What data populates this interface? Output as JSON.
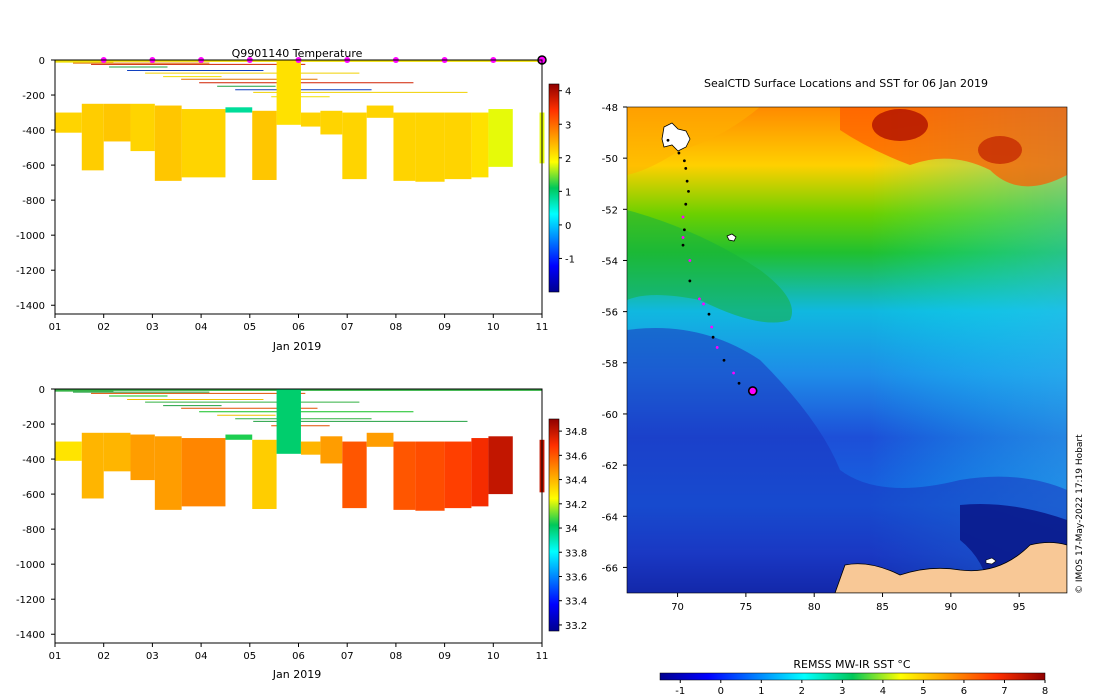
{
  "credit": "© IMOS 17-May-2022 17:19 Hobart",
  "chart_data": [
    {
      "id": "temperature",
      "type": "heatmap",
      "title": "Q9901140  Temperature",
      "xlabel": "Jan 2019",
      "ylabel": "",
      "xlim": [
        1,
        11
      ],
      "ylim": [
        -1450,
        0
      ],
      "x_ticks": [
        "01",
        "02",
        "03",
        "04",
        "05",
        "06",
        "07",
        "08",
        "09",
        "10",
        "11"
      ],
      "y_ticks": [
        0,
        -200,
        -400,
        -600,
        -800,
        -1000,
        -1200,
        -1400
      ],
      "colorbar": {
        "min": -2,
        "max": 4.2,
        "ticks": [
          4,
          3,
          2,
          1,
          0,
          -1
        ],
        "colormap": "jet"
      },
      "surface_markers_days": [
        2,
        3,
        4,
        5,
        6,
        7,
        8,
        9,
        10
      ],
      "current_position_day": 11,
      "profiles": [
        {
          "x0": 1.0,
          "x1": 1.55,
          "top": 300,
          "bottom": 415,
          "value": 2.2
        },
        {
          "x0": 1.55,
          "x1": 2.0,
          "top": 250,
          "bottom": 630,
          "value": 2.25
        },
        {
          "x0": 2.0,
          "x1": 2.55,
          "top": 250,
          "bottom": 465,
          "value": 2.3
        },
        {
          "x0": 2.55,
          "x1": 3.05,
          "top": 250,
          "bottom": 520,
          "value": 2.2
        },
        {
          "x0": 3.05,
          "x1": 3.6,
          "top": 260,
          "bottom": 690,
          "value": 2.3
        },
        {
          "x0": 3.6,
          "x1": 4.5,
          "top": 280,
          "bottom": 670,
          "value": 2.2
        },
        {
          "x0": 4.5,
          "x1": 5.05,
          "top": 270,
          "bottom": 300,
          "value": 0.8
        },
        {
          "x0": 5.05,
          "x1": 5.55,
          "top": 290,
          "bottom": 685,
          "value": 2.3
        },
        {
          "x0": 5.55,
          "x1": 6.05,
          "top": 0,
          "bottom": 370,
          "value": 2.1
        },
        {
          "x0": 6.05,
          "x1": 6.45,
          "top": 300,
          "bottom": 380,
          "value": 2.2
        },
        {
          "x0": 6.45,
          "x1": 6.9,
          "top": 290,
          "bottom": 425,
          "value": 2.2
        },
        {
          "x0": 6.9,
          "x1": 7.4,
          "top": 300,
          "bottom": 680,
          "value": 2.2
        },
        {
          "x0": 7.4,
          "x1": 7.95,
          "top": 260,
          "bottom": 330,
          "value": 2.2
        },
        {
          "x0": 7.95,
          "x1": 8.4,
          "top": 300,
          "bottom": 690,
          "value": 2.2
        },
        {
          "x0": 8.4,
          "x1": 9.0,
          "top": 300,
          "bottom": 695,
          "value": 2.2
        },
        {
          "x0": 9.0,
          "x1": 9.55,
          "top": 300,
          "bottom": 680,
          "value": 2.2
        },
        {
          "x0": 9.55,
          "x1": 9.9,
          "top": 300,
          "bottom": 670,
          "value": 2.1
        },
        {
          "x0": 9.9,
          "x1": 10.4,
          "top": 280,
          "bottom": 610,
          "value": 1.8
        },
        {
          "x0": 10.95,
          "x1": 11.05,
          "top": 300,
          "bottom": 590,
          "value": 1.8
        }
      ]
    },
    {
      "id": "salinity",
      "type": "heatmap",
      "title": "",
      "xlabel": "Jan 2019",
      "ylabel": "",
      "xlim": [
        1,
        11
      ],
      "ylim": [
        -1450,
        0
      ],
      "x_ticks": [
        "01",
        "02",
        "03",
        "04",
        "05",
        "06",
        "07",
        "08",
        "09",
        "10",
        "11"
      ],
      "y_ticks": [
        0,
        -200,
        -400,
        -600,
        -800,
        -1000,
        -1200,
        -1400
      ],
      "colorbar": {
        "min": 33.15,
        "max": 34.9,
        "ticks": [
          34.8,
          34.6,
          34.4,
          34.2,
          34,
          33.8,
          33.6,
          33.4,
          33.2
        ],
        "colormap": "jet"
      },
      "profiles": [
        {
          "x0": 1.0,
          "x1": 1.55,
          "top": 300,
          "bottom": 410,
          "value": 34.3
        },
        {
          "x0": 1.55,
          "x1": 2.0,
          "top": 250,
          "bottom": 625,
          "value": 34.4
        },
        {
          "x0": 2.0,
          "x1": 2.55,
          "top": 250,
          "bottom": 470,
          "value": 34.4
        },
        {
          "x0": 2.55,
          "x1": 3.05,
          "top": 260,
          "bottom": 520,
          "value": 34.45
        },
        {
          "x0": 3.05,
          "x1": 3.6,
          "top": 270,
          "bottom": 690,
          "value": 34.45
        },
        {
          "x0": 3.6,
          "x1": 4.5,
          "top": 280,
          "bottom": 670,
          "value": 34.5
        },
        {
          "x0": 4.5,
          "x1": 5.05,
          "top": 260,
          "bottom": 290,
          "value": 34.05
        },
        {
          "x0": 5.05,
          "x1": 5.55,
          "top": 290,
          "bottom": 685,
          "value": 34.35
        },
        {
          "x0": 5.55,
          "x1": 6.05,
          "top": 0,
          "bottom": 370,
          "value": 34.0
        },
        {
          "x0": 6.05,
          "x1": 6.45,
          "top": 300,
          "bottom": 375,
          "value": 34.4
        },
        {
          "x0": 6.45,
          "x1": 6.9,
          "top": 270,
          "bottom": 425,
          "value": 34.45
        },
        {
          "x0": 6.9,
          "x1": 7.4,
          "top": 300,
          "bottom": 680,
          "value": 34.6
        },
        {
          "x0": 7.4,
          "x1": 7.95,
          "top": 250,
          "bottom": 330,
          "value": 34.45
        },
        {
          "x0": 7.95,
          "x1": 8.4,
          "top": 300,
          "bottom": 690,
          "value": 34.6
        },
        {
          "x0": 8.4,
          "x1": 9.0,
          "top": 300,
          "bottom": 695,
          "value": 34.62
        },
        {
          "x0": 9.0,
          "x1": 9.55,
          "top": 300,
          "bottom": 680,
          "value": 34.65
        },
        {
          "x0": 9.55,
          "x1": 9.9,
          "top": 280,
          "bottom": 670,
          "value": 34.7
        },
        {
          "x0": 9.9,
          "x1": 10.4,
          "top": 270,
          "bottom": 600,
          "value": 34.8
        },
        {
          "x0": 10.95,
          "x1": 11.05,
          "top": 290,
          "bottom": 590,
          "value": 34.8
        }
      ]
    },
    {
      "id": "sst_map",
      "type": "heatmap",
      "title": "SealCTD Surface Locations and SST for 06 Jan 2019",
      "xlabel": "",
      "ylabel": "",
      "xlim": [
        66.3,
        98.5
      ],
      "ylim": [
        -67,
        -48
      ],
      "x_ticks": [
        70,
        75,
        80,
        85,
        90,
        95
      ],
      "y_ticks": [
        -48,
        -50,
        -52,
        -54,
        -56,
        -58,
        -60,
        -62,
        -64,
        -66
      ],
      "colorbar": {
        "label": "REMSS MW-IR SST °C",
        "min": -1.5,
        "max": 8,
        "ticks": [
          -1,
          0,
          1,
          2,
          3,
          4,
          5,
          6,
          7,
          8
        ],
        "colormap": "jet"
      },
      "track": [
        {
          "lon": 69.3,
          "lat": -49.3,
          "color": "#000000"
        },
        {
          "lon": 70.1,
          "lat": -49.8,
          "color": "#000000"
        },
        {
          "lon": 70.5,
          "lat": -50.1,
          "color": "#000000"
        },
        {
          "lon": 70.6,
          "lat": -50.4,
          "color": "#000000"
        },
        {
          "lon": 70.7,
          "lat": -50.9,
          "color": "#000000"
        },
        {
          "lon": 70.8,
          "lat": -51.3,
          "color": "#000000"
        },
        {
          "lon": 70.6,
          "lat": -51.8,
          "color": "#000000"
        },
        {
          "lon": 70.4,
          "lat": -52.3,
          "color": "#ff00ff"
        },
        {
          "lon": 70.5,
          "lat": -52.8,
          "color": "#000000"
        },
        {
          "lon": 70.4,
          "lat": -53.1,
          "color": "#ff00ff"
        },
        {
          "lon": 70.4,
          "lat": -53.4,
          "color": "#000000"
        },
        {
          "lon": 70.9,
          "lat": -54.0,
          "color": "#ff00ff"
        },
        {
          "lon": 70.9,
          "lat": -54.8,
          "color": "#000000"
        },
        {
          "lon": 71.6,
          "lat": -55.5,
          "color": "#ff00ff"
        },
        {
          "lon": 71.9,
          "lat": -55.7,
          "color": "#ff00ff"
        },
        {
          "lon": 72.3,
          "lat": -56.1,
          "color": "#000000"
        },
        {
          "lon": 72.5,
          "lat": -56.6,
          "color": "#ff00ff"
        },
        {
          "lon": 72.6,
          "lat": -57.0,
          "color": "#000000"
        },
        {
          "lon": 72.9,
          "lat": -57.4,
          "color": "#ff00ff"
        },
        {
          "lon": 73.4,
          "lat": -57.9,
          "color": "#000000"
        },
        {
          "lon": 74.1,
          "lat": -58.4,
          "color": "#ff00ff"
        },
        {
          "lon": 74.5,
          "lat": -58.8,
          "color": "#000000"
        }
      ],
      "current_position": {
        "lon": 75.5,
        "lat": -59.1
      }
    }
  ]
}
